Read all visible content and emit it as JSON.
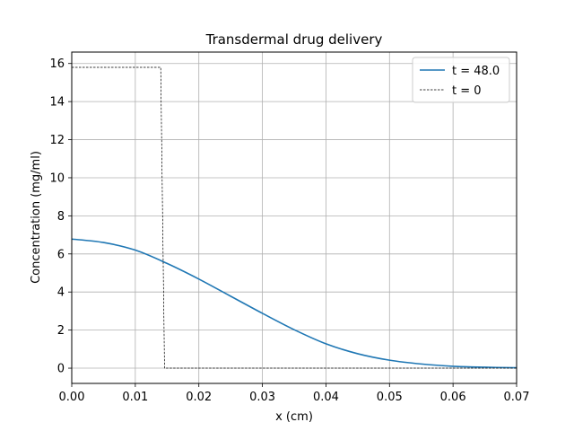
{
  "chart_data": {
    "type": "line",
    "title": "Transdermal drug delivery",
    "xlabel": "x (cm)",
    "ylabel": "Concentration (mg/ml)",
    "xlim": [
      0,
      0.07
    ],
    "ylim": [
      -0.8,
      16.6
    ],
    "xticks": [
      0.0,
      0.01,
      0.02,
      0.03,
      0.04,
      0.05,
      0.06,
      0.07
    ],
    "xtick_labels": [
      "0.00",
      "0.01",
      "0.02",
      "0.03",
      "0.04",
      "0.05",
      "0.06",
      "0.07"
    ],
    "yticks": [
      0,
      2,
      4,
      6,
      8,
      10,
      12,
      14,
      16
    ],
    "ytick_labels": [
      "0",
      "2",
      "4",
      "6",
      "8",
      "10",
      "12",
      "14",
      "16"
    ],
    "grid": true,
    "legend_position": "top-right",
    "series": [
      {
        "name": "t = 48.0",
        "color": "#1f77b4",
        "style": "solid",
        "x": [
          0.0,
          0.005,
          0.01,
          0.015,
          0.02,
          0.025,
          0.03,
          0.035,
          0.04,
          0.045,
          0.05,
          0.055,
          0.06,
          0.065,
          0.07
        ],
        "y": [
          6.78,
          6.6,
          6.2,
          5.5,
          4.68,
          3.78,
          2.88,
          2.02,
          1.28,
          0.76,
          0.42,
          0.22,
          0.1,
          0.05,
          0.02
        ]
      },
      {
        "name": "t = 0",
        "color": "#000000",
        "style": "dashed",
        "x": [
          0.0,
          0.014,
          0.0146,
          0.07
        ],
        "y": [
          15.8,
          15.8,
          0.0,
          0.0
        ]
      }
    ]
  }
}
